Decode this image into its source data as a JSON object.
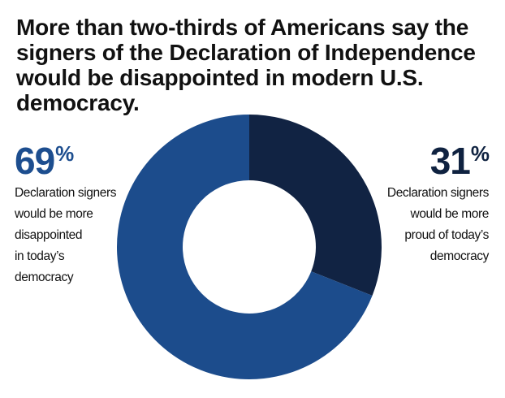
{
  "title": "More than two-thirds of Americans say the signers of the Declaration of Independence would be disappointed in modern U.S. democracy.",
  "colors": {
    "disappointed": "#1c4c8c",
    "proud": "#112343",
    "background": "#ffffff"
  },
  "callouts": {
    "left": {
      "value": "69",
      "unit": "%",
      "lines": [
        "Declaration signers",
        "would be more",
        "disappointed",
        "in today’s",
        "democracy"
      ]
    },
    "right": {
      "value": "31",
      "unit": "%",
      "lines": [
        "Declaration signers",
        "would be more",
        "proud of today’s",
        "democracy"
      ]
    }
  },
  "chart_data": {
    "type": "pie",
    "donut": true,
    "categories": [
      "Declaration signers would be more proud of today’s democracy",
      "Declaration signers would be more disappointed in today’s democracy"
    ],
    "values": [
      31,
      69
    ],
    "unit": "%",
    "colors": [
      "#112343",
      "#1c4c8c"
    ]
  }
}
